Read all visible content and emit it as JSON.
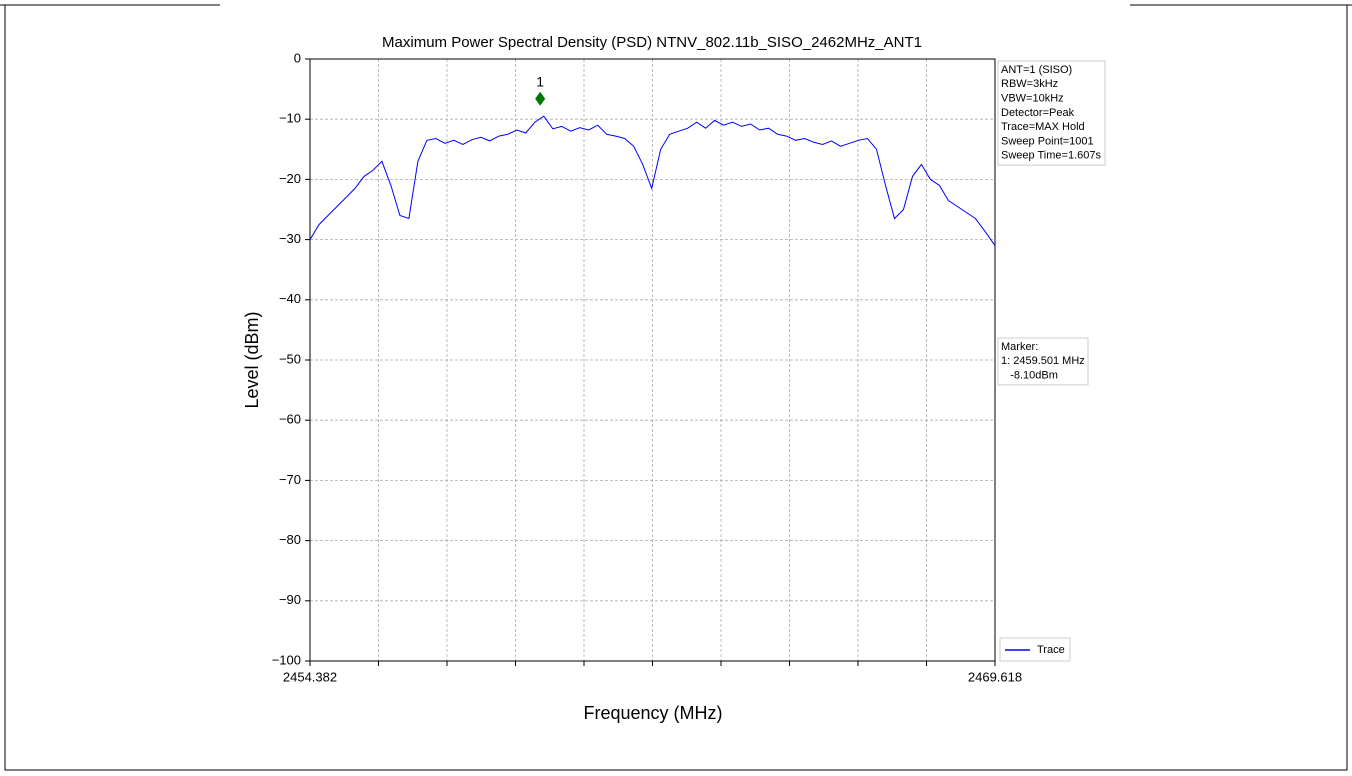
{
  "chart_data": {
    "type": "line",
    "title": "Maximum Power Spectral Density (PSD) NTNV_802.11b_SISO_2462MHz_ANT1",
    "x_label": "Frequency (MHz)",
    "y_label": "Level (dBm)",
    "xlim": [
      2454.382,
      2469.618
    ],
    "xticks": [
      2454.382,
      2469.618
    ],
    "x_divisions": 10,
    "ylim": [
      -100,
      0
    ],
    "yticks": [
      {
        "value": -100,
        "label": "−100"
      },
      {
        "value": -90,
        "label": "−90"
      },
      {
        "value": -80,
        "label": "−80"
      },
      {
        "value": -70,
        "label": "−70"
      },
      {
        "value": -60,
        "label": "−60"
      },
      {
        "value": -50,
        "label": "−50"
      },
      {
        "value": -40,
        "label": "−40"
      },
      {
        "value": -30,
        "label": "−30"
      },
      {
        "value": -20,
        "label": "−20"
      },
      {
        "value": -10,
        "label": "−10"
      },
      0
    ],
    "grid": true,
    "legend": "lower right",
    "series": [
      {
        "name": "Trace",
        "color": "#0000ff",
        "x": [
          2454.382,
          2454.582,
          2454.782,
          2454.982,
          2455.182,
          2455.382,
          2455.582,
          2455.782,
          2455.982,
          2456.182,
          2456.382,
          2456.582,
          2456.782,
          2456.982,
          2457.182,
          2457.382,
          2457.582,
          2457.782,
          2457.982,
          2458.182,
          2458.382,
          2458.582,
          2458.782,
          2458.982,
          2459.182,
          2459.382,
          2459.582,
          2459.782,
          2459.982,
          2460.182,
          2460.382,
          2460.582,
          2460.782,
          2460.982,
          2461.182,
          2461.382,
          2461.582,
          2461.782,
          2461.982,
          2462.182,
          2462.382,
          2462.582,
          2462.782,
          2462.982,
          2463.182,
          2463.382,
          2463.582,
          2463.782,
          2463.982,
          2464.182,
          2464.382,
          2464.582,
          2464.782,
          2464.982,
          2465.182,
          2465.382,
          2465.582,
          2465.782,
          2465.982,
          2466.182,
          2466.382,
          2466.582,
          2466.782,
          2466.982,
          2467.182,
          2467.382,
          2467.582,
          2467.782,
          2467.982,
          2468.182,
          2468.382,
          2468.582,
          2468.782,
          2468.982,
          2469.182,
          2469.382,
          2469.618
        ],
        "values": [
          -30,
          -27.5,
          -26,
          -24.5,
          -23,
          -21.5,
          -19.5,
          -18.5,
          -17,
          -21,
          -26,
          -26.5,
          -17,
          -13.5,
          -13.2,
          -14,
          -13.5,
          -14.2,
          -13.4,
          -13,
          -13.6,
          -12.8,
          -12.5,
          -11.8,
          -12.3,
          -10.5,
          -9.5,
          -11.6,
          -11.2,
          -12,
          -11.4,
          -11.8,
          -11,
          -12.5,
          -12.8,
          -13.2,
          -14.5,
          -17.5,
          -21.5,
          -15,
          -12.5,
          -12,
          -11.5,
          -10.5,
          -11.5,
          -10.2,
          -11,
          -10.5,
          -11.2,
          -10.8,
          -11.8,
          -11.5,
          -12.5,
          -12.8,
          -13.5,
          -13.2,
          -13.8,
          -14.2,
          -13.6,
          -14.5,
          -14,
          -13.5,
          -13.2,
          -15,
          -21,
          -26.5,
          -25,
          -19.5,
          -17.5,
          -20,
          -21,
          -23.5,
          -24.5,
          -25.5,
          -26.5,
          -28.5,
          -31
        ]
      }
    ],
    "marker": {
      "label": "1",
      "x": 2459.501,
      "y": -8.1,
      "color": "#007700"
    },
    "info_box": [
      "ANT=1 (SISO)",
      "RBW=3kHz",
      "VBW=10kHz",
      "Detector=Peak",
      "Trace=MAX Hold",
      "Sweep Point=1001",
      "Sweep Time=1.607s"
    ],
    "marker_box": [
      "Marker:",
      "1: 2459.501 MHz",
      "   -8.10dBm"
    ]
  }
}
